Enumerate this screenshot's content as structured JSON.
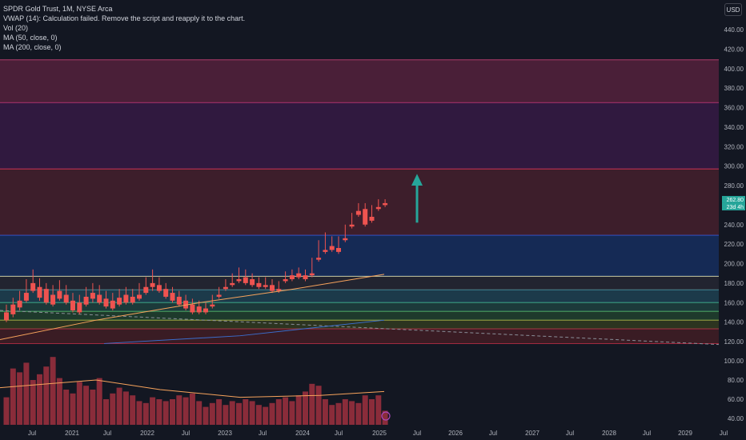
{
  "legend": {
    "symbol": "SPDR Gold Trust, 1M, NYSE Arca",
    "vwap": "VWAP (14): Calculation failed. Remove the script and reapply it to the chart.",
    "vol": "Vol (20)",
    "ma50": "MA (50, close, 0)",
    "ma200": "MA (200, close, 0)"
  },
  "currency_button": "USD",
  "price_badges": {
    "current": "262.80",
    "countdown": "23d 4h"
  },
  "colors": {
    "up": "#26a69a",
    "down": "#ef5350",
    "bg": "#131722",
    "ma": "#f7a35c",
    "arrow": "#26a69a"
  },
  "chart_data": {
    "type": "candlestick",
    "price_axis": {
      "ticks": [
        "440.00",
        "420.00",
        "400.00",
        "380.00",
        "360.00",
        "340.00",
        "320.00",
        "300.00",
        "280.00",
        "260.00",
        "240.00",
        "220.00",
        "200.00",
        "180.00",
        "160.00",
        "140.00",
        "120.00"
      ],
      "range": [
        112,
        450
      ]
    },
    "volume_axis": {
      "ticks": [
        "100.00",
        "80.00",
        "60.00",
        "40.00"
      ],
      "range": [
        36,
        104
      ]
    },
    "time_axis": {
      "ticks": [
        "Jul",
        "2021",
        "Jul",
        "2022",
        "Jul",
        "2023",
        "Jul",
        "2024",
        "Jul",
        "2025",
        "Jul",
        "2026",
        "Jul",
        "2027",
        "Jul",
        "2028",
        "Jul",
        "2029",
        "Jul"
      ]
    },
    "zones": [
      {
        "from": 365,
        "to": 409,
        "fill": "#4a1f38",
        "edge": "#b03a6a"
      },
      {
        "from": 297,
        "to": 365,
        "fill": "#30193f",
        "edge": "#a0306a"
      },
      {
        "from": 229,
        "to": 297,
        "fill": "#3d1e2b",
        "edge": "#c03050"
      },
      {
        "from": 187,
        "to": 229,
        "fill": "#152a55",
        "edge": "#2a4fbf"
      },
      {
        "from": 173,
        "to": 187,
        "fill": "#222430",
        "edge": "#c8c8a0"
      },
      {
        "from": 160,
        "to": 173,
        "fill": "#1c3a4a",
        "edge": "#3a7a8a"
      },
      {
        "from": 151,
        "to": 160,
        "fill": "#1c3a3a",
        "edge": "#3aa080"
      },
      {
        "from": 142,
        "to": 151,
        "fill": "#1e3a2c",
        "edge": "#4aa060"
      },
      {
        "from": 133,
        "to": 142,
        "fill": "#2c3420",
        "edge": "#9aa040"
      },
      {
        "from": 118,
        "to": 133,
        "fill": "#3a1c24",
        "edge": "#a02a40"
      }
    ],
    "candles": [
      [
        150,
        158,
        142,
        140
      ],
      [
        158,
        165,
        148,
        145
      ],
      [
        162,
        172,
        155,
        152
      ],
      [
        170,
        184,
        162,
        160
      ],
      [
        180,
        194,
        172,
        170
      ],
      [
        176,
        185,
        165,
        162
      ],
      [
        174,
        180,
        160,
        158
      ],
      [
        168,
        178,
        158,
        156
      ],
      [
        172,
        183,
        164,
        162
      ],
      [
        168,
        178,
        160,
        158
      ],
      [
        162,
        170,
        152,
        150
      ],
      [
        160,
        168,
        150,
        148
      ],
      [
        166,
        176,
        158,
        156
      ],
      [
        170,
        180,
        164,
        160
      ],
      [
        168,
        178,
        160,
        158
      ],
      [
        164,
        172,
        156,
        154
      ],
      [
        162,
        170,
        154,
        152
      ],
      [
        165,
        174,
        158,
        156
      ],
      [
        168,
        176,
        160,
        158
      ],
      [
        166,
        174,
        160,
        158
      ],
      [
        168,
        180,
        164,
        162
      ],
      [
        176,
        186,
        170,
        168
      ],
      [
        180,
        194,
        176,
        172
      ],
      [
        178,
        186,
        172,
        170
      ],
      [
        174,
        180,
        166,
        164
      ],
      [
        170,
        176,
        162,
        160
      ],
      [
        166,
        172,
        158,
        156
      ],
      [
        162,
        168,
        154,
        152
      ],
      [
        158,
        164,
        150,
        148
      ],
      [
        156,
        162,
        150,
        148
      ],
      [
        154,
        160,
        150,
        148
      ],
      [
        158,
        168,
        156,
        154
      ],
      [
        168,
        176,
        166,
        164
      ],
      [
        176,
        184,
        174,
        172
      ],
      [
        180,
        190,
        178,
        176
      ],
      [
        184,
        196,
        182,
        180
      ],
      [
        186,
        194,
        180,
        178
      ],
      [
        184,
        190,
        178,
        176
      ],
      [
        180,
        186,
        176,
        174
      ],
      [
        178,
        186,
        176,
        174
      ],
      [
        178,
        184,
        172,
        170
      ],
      [
        174,
        182,
        172,
        170
      ],
      [
        184,
        192,
        182,
        180
      ],
      [
        188,
        194,
        184,
        182
      ],
      [
        190,
        196,
        186,
        184
      ],
      [
        188,
        194,
        184,
        182
      ],
      [
        190,
        206,
        188,
        186
      ],
      [
        206,
        224,
        204,
        202
      ],
      [
        214,
        232,
        212,
        210
      ],
      [
        218,
        228,
        214,
        212
      ],
      [
        216,
        228,
        212,
        210
      ],
      [
        226,
        240,
        224,
        222
      ],
      [
        240,
        252,
        238,
        236
      ],
      [
        254,
        262,
        250,
        248
      ],
      [
        256,
        262,
        240,
        238
      ],
      [
        248,
        260,
        244,
        242
      ],
      [
        258,
        266,
        256,
        254
      ],
      [
        262,
        266,
        260,
        258
      ]
    ],
    "volumes": [
      62,
      92,
      88,
      98,
      80,
      86,
      94,
      104,
      82,
      70,
      66,
      78,
      74,
      70,
      82,
      60,
      66,
      72,
      68,
      64,
      58,
      56,
      62,
      60,
      58,
      60,
      64,
      62,
      66,
      58,
      52,
      56,
      60,
      54,
      58,
      56,
      60,
      58,
      54,
      52,
      56,
      60,
      62,
      58,
      64,
      68,
      76,
      74,
      60,
      54,
      56,
      60,
      58,
      56,
      64,
      60,
      64,
      48
    ]
  }
}
